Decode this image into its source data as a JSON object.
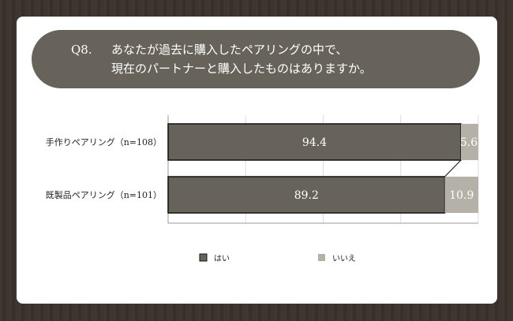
{
  "title": {
    "number": "Q8.",
    "line1": "あなたが過去に購入したペアリングの中で、",
    "line2": "現在のパートナーと購入したものはありますか。"
  },
  "chart_data": {
    "type": "bar",
    "orientation": "horizontal",
    "stacked": true,
    "percent_stacked": true,
    "categories": [
      "手作りペアリング（n=108）",
      "既製品ペアリング（n=101）"
    ],
    "series": [
      {
        "name": "はい",
        "values": [
          94.4,
          89.2
        ],
        "color": "#67635a"
      },
      {
        "name": "いいえ",
        "values": [
          5.6,
          10.9
        ],
        "color": "#b5b1a8"
      }
    ],
    "xlim": [
      0,
      100
    ],
    "grid": true,
    "series_lines": true,
    "legend": "bottom"
  },
  "colors": {
    "background": "#3b312b",
    "card": "#ffffff",
    "title_pill": "#67635a"
  }
}
